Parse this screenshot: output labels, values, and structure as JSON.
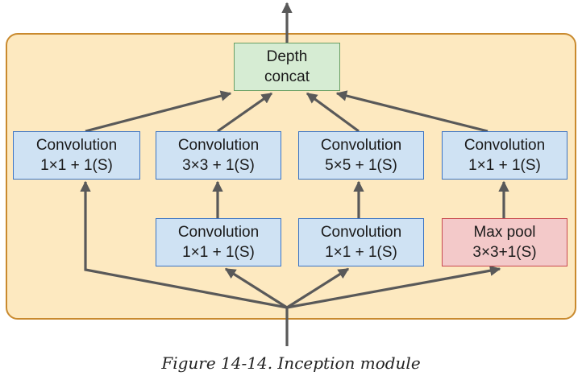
{
  "colors": {
    "module_fill": "#fde9c0",
    "module_border": "#c98a2e",
    "arrow": "#595959",
    "conv_fill": "#cfe2f3",
    "concat_fill": "#d6ecd3",
    "pool_fill": "#f3c9c9"
  },
  "concat": {
    "line1": "Depth",
    "line2": "concat"
  },
  "top_row": [
    {
      "line1": "Convolution",
      "line2": "1×1 + 1(S)"
    },
    {
      "line1": "Convolution",
      "line2": "3×3 + 1(S)"
    },
    {
      "line1": "Convolution",
      "line2": "5×5 + 1(S)"
    },
    {
      "line1": "Convolution",
      "line2": "1×1 + 1(S)"
    }
  ],
  "bottom_row": [
    {
      "line1": "Convolution",
      "line2": "1×1 + 1(S)"
    },
    {
      "line1": "Convolution",
      "line2": "1×1 + 1(S)"
    },
    {
      "line1": "Max pool",
      "line2": "3×3+1(S)"
    }
  ],
  "caption": "Figure 14-14. Inception module"
}
